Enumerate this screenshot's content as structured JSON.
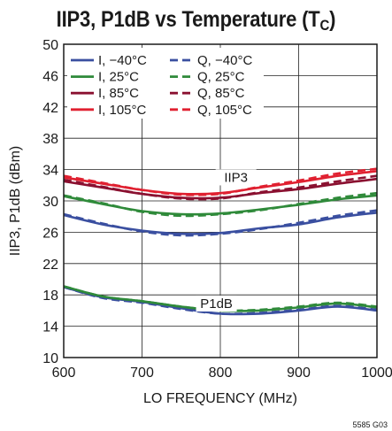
{
  "chart_data": {
    "type": "line",
    "title_main": "IIP3, P1dB vs Temperature (T",
    "title_sub": "C",
    "title_tail": ")",
    "xlabel": "LO FREQUENCY (MHz)",
    "ylabel": "IIP3, P1dB (dBm)",
    "xlim": [
      600,
      1000
    ],
    "ylim": [
      10,
      50
    ],
    "xticks": [
      600,
      700,
      800,
      900,
      1000
    ],
    "yticks": [
      10,
      14,
      18,
      22,
      26,
      30,
      34,
      38,
      42,
      46,
      50
    ],
    "grid": true,
    "legend_position": "top-left",
    "annotations": [
      {
        "text": "IIP3",
        "x": 820,
        "y": 33.0
      },
      {
        "text": "P1dB",
        "x": 795,
        "y": 16.9
      }
    ],
    "figure_code": "5585 G03",
    "series": [
      {
        "name": "I, −40°C",
        "color": "#3a4fa0",
        "dash": "solid",
        "group": "IIP3",
        "x": [
          600,
          650,
          700,
          750,
          800,
          850,
          900,
          950,
          1000
        ],
        "y": [
          28.2,
          27.0,
          26.2,
          25.8,
          25.9,
          26.5,
          27.0,
          27.9,
          28.5
        ]
      },
      {
        "name": "Q, −40°C",
        "color": "#3a4fa0",
        "dash": "dashed",
        "group": "IIP3",
        "x": [
          600,
          650,
          700,
          750,
          800,
          850,
          900,
          950,
          1000
        ],
        "y": [
          28.3,
          27.1,
          26.1,
          25.6,
          25.8,
          26.4,
          27.2,
          28.1,
          28.8
        ]
      },
      {
        "name": "I, 25°C",
        "color": "#2f8a3a",
        "dash": "solid",
        "group": "IIP3",
        "x": [
          600,
          650,
          700,
          750,
          800,
          850,
          900,
          950,
          1000
        ],
        "y": [
          30.6,
          29.6,
          28.7,
          28.3,
          28.4,
          28.9,
          29.5,
          30.2,
          30.7
        ]
      },
      {
        "name": "Q, 25°C",
        "color": "#2f8a3a",
        "dash": "dashed",
        "group": "IIP3",
        "x": [
          600,
          650,
          700,
          750,
          800,
          850,
          900,
          950,
          1000
        ],
        "y": [
          30.7,
          29.7,
          28.6,
          28.1,
          28.3,
          28.8,
          29.6,
          30.4,
          31.0
        ]
      },
      {
        "name": "I, 85°C",
        "color": "#8a1030",
        "dash": "solid",
        "group": "IIP3",
        "x": [
          600,
          650,
          700,
          750,
          800,
          850,
          900,
          950,
          1000
        ],
        "y": [
          32.5,
          31.7,
          30.9,
          30.4,
          30.4,
          31.0,
          31.5,
          32.2,
          32.8
        ]
      },
      {
        "name": "Q, 85°C",
        "color": "#8a1030",
        "dash": "dashed",
        "group": "IIP3",
        "x": [
          600,
          650,
          700,
          750,
          800,
          850,
          900,
          950,
          1000
        ],
        "y": [
          32.7,
          31.8,
          30.9,
          30.3,
          30.3,
          31.1,
          31.7,
          32.5,
          33.2
        ]
      },
      {
        "name": "I, 105°C",
        "color": "#e02030",
        "dash": "solid",
        "group": "IIP3",
        "x": [
          600,
          650,
          700,
          750,
          800,
          850,
          900,
          950,
          1000
        ],
        "y": [
          33.0,
          32.2,
          31.4,
          30.9,
          31.0,
          31.7,
          32.4,
          33.2,
          33.8
        ]
      },
      {
        "name": "Q, 105°C",
        "color": "#e02030",
        "dash": "dashed",
        "group": "IIP3",
        "x": [
          600,
          650,
          700,
          750,
          800,
          850,
          900,
          950,
          1000
        ],
        "y": [
          33.2,
          32.3,
          31.4,
          30.8,
          30.9,
          31.8,
          32.6,
          33.5,
          34.1
        ]
      },
      {
        "name": "I, −40°C",
        "color": "#3a4fa0",
        "dash": "solid",
        "group": "P1dB",
        "x": [
          600,
          650,
          700,
          750,
          800,
          850,
          900,
          950,
          1000
        ],
        "y": [
          19.0,
          17.7,
          17.1,
          16.3,
          15.6,
          15.6,
          16.0,
          16.5,
          16.0
        ]
      },
      {
        "name": "Q, −40°C",
        "color": "#3a4fa0",
        "dash": "dashed",
        "group": "P1dB",
        "x": [
          600,
          650,
          700,
          750,
          800,
          850,
          900,
          950,
          1000
        ],
        "y": [
          19.0,
          17.6,
          17.0,
          16.2,
          15.6,
          15.7,
          16.1,
          16.6,
          16.1
        ]
      },
      {
        "name": "I, 25°C",
        "color": "#2f8a3a",
        "dash": "solid",
        "group": "P1dB",
        "x": [
          600,
          650,
          700,
          750,
          800,
          850,
          900,
          950,
          1000
        ],
        "y": [
          19.1,
          17.8,
          17.2,
          16.5,
          16.0,
          16.0,
          16.4,
          16.9,
          16.4
        ]
      },
      {
        "name": "Q, 25°C",
        "color": "#2f8a3a",
        "dash": "dashed",
        "group": "P1dB",
        "x": [
          600,
          650,
          700,
          750,
          800,
          850,
          900,
          950,
          1000
        ],
        "y": [
          19.1,
          17.8,
          17.2,
          16.5,
          16.0,
          16.1,
          16.5,
          17.0,
          16.5
        ]
      }
    ]
  }
}
